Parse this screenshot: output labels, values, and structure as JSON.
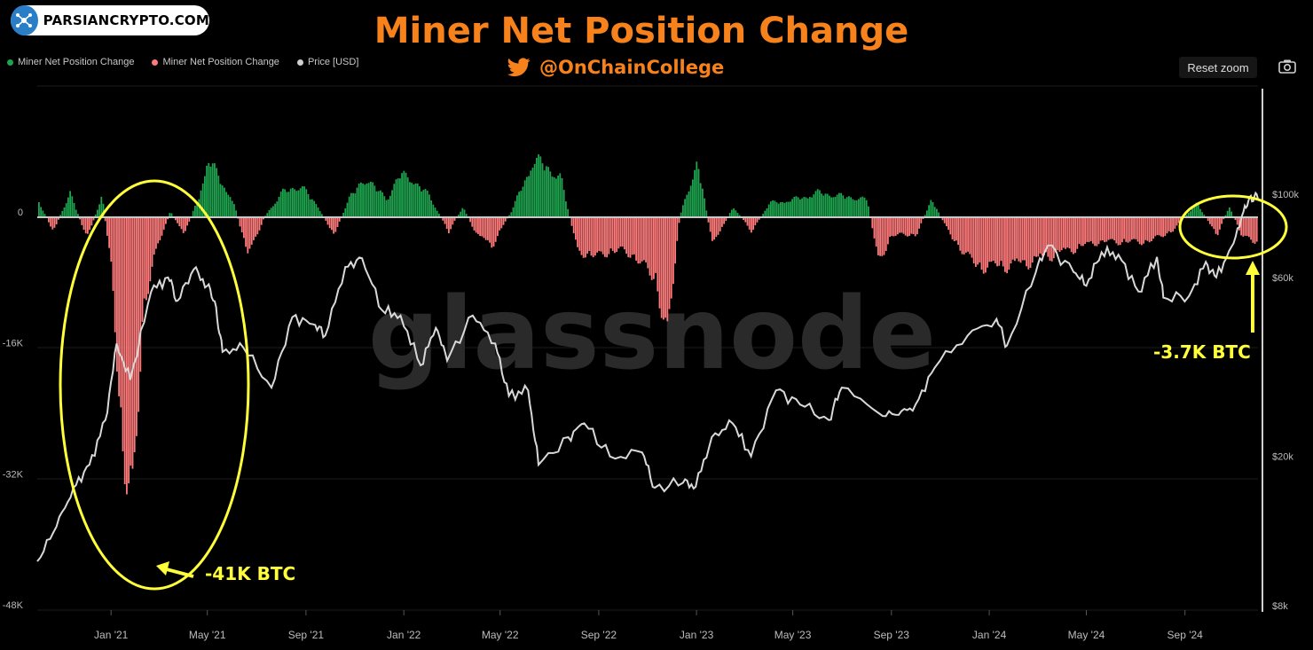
{
  "brand": {
    "name": "PARSIANCRYPTO.COM",
    "icon": "network-logo-icon"
  },
  "title": "Miner Net Position Change",
  "handle": {
    "text": "@OnChainCollege",
    "icon": "twitter-bird-icon"
  },
  "legend": [
    {
      "label": "Miner Net Position Change",
      "color": "#1ea34f"
    },
    {
      "label": "Miner Net Position Change",
      "color": "#ff7a7a"
    },
    {
      "label": "Price [USD]",
      "color": "#d0d0d0"
    }
  ],
  "toolbar": {
    "reset_label": "Reset zoom",
    "camera_icon": "camera-icon"
  },
  "annotations": {
    "left": "-41K BTC",
    "right": "-3.7K BTC",
    "highlight_color": "#ffff3a"
  },
  "watermark": "glassnode",
  "chart_data": {
    "type": "bar+line",
    "title": "Miner Net Position Change",
    "x_ticks": [
      "Jan '21",
      "May '21",
      "Sep '21",
      "Jan '22",
      "May '22",
      "Sep '22",
      "Jan '23",
      "May '23",
      "Sep '23",
      "Jan '24",
      "May '24",
      "Sep '24"
    ],
    "left_axis": {
      "ticks": [
        "0",
        "-16K",
        "-32K",
        "-48K"
      ],
      "ylim": [
        -48000,
        15000
      ]
    },
    "right_axis": {
      "scale": "log",
      "ticks": [
        "$100k",
        "$60k",
        "$20k",
        "$8k"
      ],
      "ylim": [
        8000,
        180000
      ]
    },
    "colors": {
      "positive": "#1ea34f",
      "negative": "#ff7a7a",
      "price": "#d9d9d9"
    },
    "series": [
      {
        "name": "Miner Net Position Change",
        "unit": "BTC",
        "points": [
          [
            "2020-10-01",
            2500
          ],
          [
            "2020-10-20",
            -2000
          ],
          [
            "2020-11-10",
            3500
          ],
          [
            "2020-12-01",
            -3000
          ],
          [
            "2020-12-20",
            3000
          ],
          [
            "2021-01-01",
            -8000
          ],
          [
            "2021-01-12",
            -30000
          ],
          [
            "2021-01-28",
            -41000
          ],
          [
            "2021-02-10",
            -12000
          ],
          [
            "2021-02-25",
            -5000
          ],
          [
            "2021-03-15",
            800
          ],
          [
            "2021-04-01",
            -2500
          ],
          [
            "2021-04-20",
            3000
          ],
          [
            "2021-05-01",
            8500
          ],
          [
            "2021-05-12",
            6000
          ],
          [
            "2021-06-01",
            2500
          ],
          [
            "2021-06-20",
            -5500
          ],
          [
            "2021-07-10",
            0
          ],
          [
            "2021-08-01",
            3500
          ],
          [
            "2021-08-25",
            4500
          ],
          [
            "2021-09-15",
            1500
          ],
          [
            "2021-10-05",
            -2500
          ],
          [
            "2021-10-25",
            3000
          ],
          [
            "2021-11-15",
            5500
          ],
          [
            "2021-12-10",
            2500
          ],
          [
            "2021-12-25",
            6000
          ],
          [
            "2022-01-10",
            5500
          ],
          [
            "2022-02-01",
            3000
          ],
          [
            "2022-02-25",
            -2000
          ],
          [
            "2022-03-15",
            1500
          ],
          [
            "2022-04-01",
            -2500
          ],
          [
            "2022-04-20",
            -4000
          ],
          [
            "2022-05-15",
            1000
          ],
          [
            "2022-06-10",
            8000
          ],
          [
            "2022-06-25",
            7500
          ],
          [
            "2022-07-15",
            5500
          ],
          [
            "2022-08-05",
            -5000
          ],
          [
            "2022-09-01",
            -5500
          ],
          [
            "2022-09-25",
            -4500
          ],
          [
            "2022-10-20",
            -6000
          ],
          [
            "2022-11-10",
            -9000
          ],
          [
            "2022-11-25",
            -17000
          ],
          [
            "2022-12-10",
            0
          ],
          [
            "2023-01-01",
            8000
          ],
          [
            "2023-01-20",
            -4000
          ],
          [
            "2023-02-15",
            1500
          ],
          [
            "2023-03-10",
            -2000
          ],
          [
            "2023-04-01",
            2000
          ],
          [
            "2023-05-01",
            2500
          ],
          [
            "2023-06-01",
            3500
          ],
          [
            "2023-07-01",
            3000
          ],
          [
            "2023-08-01",
            2500
          ],
          [
            "2023-08-15",
            -6500
          ],
          [
            "2023-09-01",
            -2500
          ],
          [
            "2023-10-01",
            -2500
          ],
          [
            "2023-10-20",
            2500
          ],
          [
            "2023-11-15",
            -3000
          ],
          [
            "2023-12-15",
            -7000
          ],
          [
            "2024-01-15",
            -7000
          ],
          [
            "2024-02-15",
            -6500
          ],
          [
            "2024-03-15",
            -5500
          ],
          [
            "2024-04-15",
            -4500
          ],
          [
            "2024-05-15",
            -3500
          ],
          [
            "2024-06-15",
            -3500
          ],
          [
            "2024-07-15",
            -3500
          ],
          [
            "2024-08-15",
            -2000
          ],
          [
            "2024-09-15",
            2000
          ],
          [
            "2024-10-10",
            -2500
          ],
          [
            "2024-10-25",
            1500
          ],
          [
            "2024-11-10",
            -2500
          ],
          [
            "2024-11-25",
            -3700
          ]
        ]
      },
      {
        "name": "Price [USD]",
        "unit": "USD",
        "points": [
          [
            "2020-10-01",
            10500
          ],
          [
            "2020-10-25",
            13000
          ],
          [
            "2020-11-15",
            16500
          ],
          [
            "2020-12-05",
            19000
          ],
          [
            "2020-12-25",
            25000
          ],
          [
            "2021-01-08",
            40000
          ],
          [
            "2021-01-25",
            32000
          ],
          [
            "2021-02-20",
            55000
          ],
          [
            "2021-03-13",
            60000
          ],
          [
            "2021-03-25",
            52000
          ],
          [
            "2021-04-14",
            63000
          ],
          [
            "2021-05-01",
            57000
          ],
          [
            "2021-05-12",
            50000
          ],
          [
            "2021-05-20",
            38000
          ],
          [
            "2021-06-15",
            39000
          ],
          [
            "2021-07-20",
            30500
          ],
          [
            "2021-08-15",
            47000
          ],
          [
            "2021-09-10",
            45000
          ],
          [
            "2021-09-25",
            42000
          ],
          [
            "2021-10-20",
            64000
          ],
          [
            "2021-11-10",
            67500
          ],
          [
            "2021-12-05",
            49000
          ],
          [
            "2021-12-28",
            47500
          ],
          [
            "2022-01-22",
            35000
          ],
          [
            "2022-02-10",
            44000
          ],
          [
            "2022-02-24",
            36000
          ],
          [
            "2022-03-28",
            47500
          ],
          [
            "2022-04-25",
            40000
          ],
          [
            "2022-05-12",
            29000
          ],
          [
            "2022-06-05",
            30000
          ],
          [
            "2022-06-18",
            19000
          ],
          [
            "2022-07-25",
            22500
          ],
          [
            "2022-08-14",
            24500
          ],
          [
            "2022-09-15",
            20000
          ],
          [
            "2022-10-25",
            20500
          ],
          [
            "2022-11-10",
            16500
          ],
          [
            "2022-12-15",
            17000
          ],
          [
            "2022-12-31",
            16600
          ],
          [
            "2023-01-20",
            22500
          ],
          [
            "2023-02-15",
            24500
          ],
          [
            "2023-03-10",
            20000
          ],
          [
            "2023-04-10",
            30000
          ],
          [
            "2023-05-10",
            27500
          ],
          [
            "2023-06-15",
            25000
          ],
          [
            "2023-07-01",
            30500
          ],
          [
            "2023-08-17",
            26000
          ],
          [
            "2023-09-10",
            25800
          ],
          [
            "2023-10-01",
            27500
          ],
          [
            "2023-10-25",
            34500
          ],
          [
            "2023-12-05",
            42000
          ],
          [
            "2024-01-10",
            46500
          ],
          [
            "2024-01-23",
            39500
          ],
          [
            "2024-02-28",
            62000
          ],
          [
            "2024-03-14",
            73000
          ],
          [
            "2024-04-15",
            62000
          ],
          [
            "2024-05-01",
            57000
          ],
          [
            "2024-05-20",
            70000
          ],
          [
            "2024-06-10",
            69000
          ],
          [
            "2024-07-05",
            55000
          ],
          [
            "2024-07-28",
            68000
          ],
          [
            "2024-08-05",
            53000
          ],
          [
            "2024-09-06",
            53500
          ],
          [
            "2024-09-27",
            66000
          ],
          [
            "2024-10-10",
            60000
          ],
          [
            "2024-10-29",
            72500
          ],
          [
            "2024-11-13",
            90000
          ],
          [
            "2024-11-22",
            99000
          ],
          [
            "2024-12-01",
            97000
          ]
        ]
      }
    ]
  }
}
